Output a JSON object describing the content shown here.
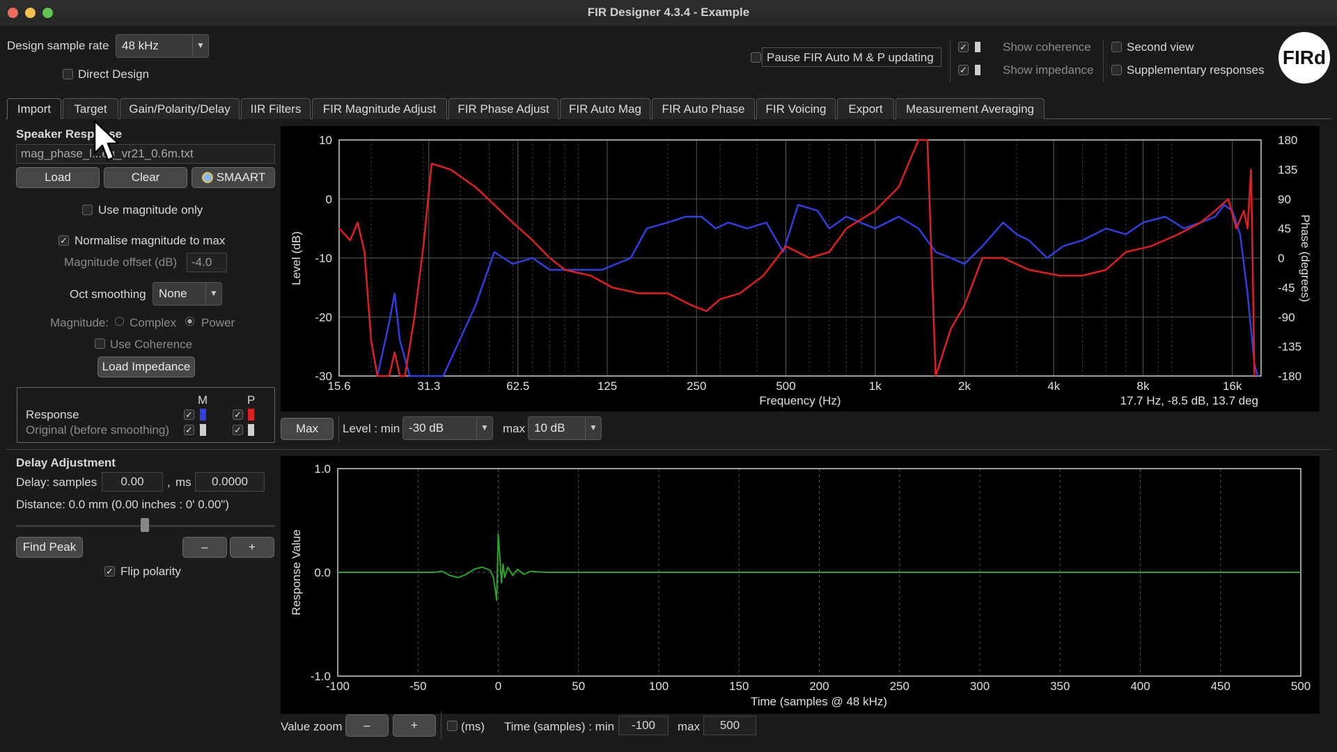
{
  "window": {
    "title": "FIR Designer 4.3.4 - Example"
  },
  "top": {
    "sample_rate_label": "Design sample rate",
    "sample_rate_value": "48 kHz",
    "direct_design": "Direct Design",
    "pause_fir": "Pause FIR Auto M & P updating",
    "show_coherence": "Show coherence",
    "show_impedance": "Show impedance",
    "second_view": "Second view",
    "supplementary": "Supplementary responses",
    "logo": "FIRd"
  },
  "tabs": [
    "Import",
    "Target",
    "Gain/Polarity/Delay",
    "IIR Filters",
    "FIR Magnitude Adjust",
    "FIR Phase Adjust",
    "FIR Auto Mag",
    "FIR Auto Phase",
    "FIR Voicing",
    "Export",
    "Measurement Averaging"
  ],
  "left": {
    "speaker_response": "Speaker Response",
    "filename": "mag_phase_l...eq_vr21_0.6m.txt",
    "load": "Load",
    "clear": "Clear",
    "smaart": "SMAART",
    "use_mag_only": "Use magnitude only",
    "normalise": "Normalise magnitude to max",
    "mag_offset_label": "Magnitude offset (dB)",
    "mag_offset_value": "-4.0",
    "oct_smoothing_label": "Oct smoothing",
    "oct_smoothing_value": "None",
    "magnitude_label": "Magnitude:",
    "complex": "Complex",
    "power": "Power",
    "use_coherence": "Use Coherence",
    "load_impedance": "Load Impedance",
    "legend_m": "M",
    "legend_p": "P",
    "response": "Response",
    "original": "Original (before smoothing)",
    "colors": {
      "magnitude": "#2f3fe0",
      "phase": "#e02020",
      "impulse": "#2aa52a"
    }
  },
  "delay": {
    "title": "Delay Adjustment",
    "samples_label": "Delay: samples",
    "samples_value": "0.00",
    "ms_label": "ms",
    "ms_value": "0.0000",
    "distance": "Distance: 0.0 mm (0.00 inches : 0'  0.00\")",
    "find_peak": "Find Peak",
    "minus": "–",
    "plus": "+",
    "flip_polarity": "Flip polarity"
  },
  "freq_controls": {
    "max_btn": "Max",
    "level_min_label": "Level : min",
    "level_min_value": "-30 dB",
    "max_label": "max",
    "max_value": "10 dB"
  },
  "time_controls": {
    "value_zoom": "Value zoom",
    "minus": "–",
    "plus": "+",
    "ms": "(ms)",
    "time_min_label": "Time (samples) : min",
    "time_min_value": "-100",
    "max_label": "max",
    "max_value": "500"
  },
  "chart_data": [
    {
      "type": "line",
      "xlabel": "Frequency (Hz)",
      "ylabel": "Level (dB)",
      "y2label": "Phase (degrees)",
      "xscale": "log",
      "xlim": [
        15.6,
        20000
      ],
      "xticks": [
        "15.6",
        "31.3",
        "62.5",
        "125",
        "250",
        "500",
        "1k",
        "2k",
        "4k",
        "8k",
        "16k"
      ],
      "ylim": [
        -30,
        10
      ],
      "yticks": [
        "10",
        "0",
        "-10",
        "-20",
        "-30"
      ],
      "y2lim": [
        -180,
        180
      ],
      "y2ticks": [
        "180",
        "135",
        "90",
        "45",
        "0",
        "-45",
        "-90",
        "-135",
        "-180"
      ],
      "readout": "17.7 Hz,  -8.5 dB,  13.7 deg",
      "series": [
        {
          "key": "magnitude",
          "color": "#2f3fe0",
          "points": [
            [
              21,
              -30
            ],
            [
              23,
              -21
            ],
            [
              24,
              -16
            ],
            [
              25,
              -24
            ],
            [
              27,
              -30
            ],
            [
              35,
              -30
            ],
            [
              45,
              -18
            ],
            [
              52,
              -9
            ],
            [
              60,
              -11
            ],
            [
              70,
              -10
            ],
            [
              80,
              -12
            ],
            [
              95,
              -12
            ],
            [
              120,
              -12
            ],
            [
              150,
              -10
            ],
            [
              170,
              -5
            ],
            [
              200,
              -4
            ],
            [
              230,
              -3
            ],
            [
              260,
              -3
            ],
            [
              290,
              -5
            ],
            [
              320,
              -4
            ],
            [
              370,
              -5
            ],
            [
              430,
              -4
            ],
            [
              490,
              -9
            ],
            [
              550,
              -1
            ],
            [
              640,
              -2
            ],
            [
              700,
              -5
            ],
            [
              800,
              -3
            ],
            [
              1000,
              -5
            ],
            [
              1200,
              -3
            ],
            [
              1400,
              -5
            ],
            [
              1600,
              -9
            ],
            [
              1800,
              -10
            ],
            [
              2000,
              -11
            ],
            [
              2300,
              -8
            ],
            [
              2700,
              -4
            ],
            [
              3000,
              -6
            ],
            [
              3300,
              -7
            ],
            [
              3800,
              -10
            ],
            [
              4300,
              -8
            ],
            [
              5000,
              -7
            ],
            [
              6000,
              -5
            ],
            [
              7000,
              -6
            ],
            [
              8000,
              -4
            ],
            [
              9500,
              -3
            ],
            [
              11000,
              -5
            ],
            [
              12500,
              -4
            ],
            [
              14000,
              -3
            ],
            [
              15000,
              -1
            ],
            [
              16000,
              -2
            ],
            [
              17000,
              -6
            ],
            [
              18000,
              -16
            ],
            [
              19000,
              -28
            ],
            [
              19500,
              -30
            ]
          ]
        },
        {
          "key": "phase",
          "color": "#e02020",
          "points": [
            [
              15.6,
              -5
            ],
            [
              17,
              -7
            ],
            [
              18,
              -4
            ],
            [
              19,
              -9
            ],
            [
              20,
              -24
            ],
            [
              21,
              -30
            ],
            [
              23,
              -30
            ],
            [
              24,
              -26
            ],
            [
              25,
              -30
            ],
            [
              26,
              -30
            ],
            [
              28,
              -20
            ],
            [
              30,
              -8
            ],
            [
              32,
              6
            ],
            [
              37,
              5
            ],
            [
              45,
              2
            ],
            [
              52,
              -1
            ],
            [
              60,
              -4
            ],
            [
              70,
              -7
            ],
            [
              80,
              -10
            ],
            [
              90,
              -12
            ],
            [
              110,
              -13
            ],
            [
              130,
              -15
            ],
            [
              160,
              -16
            ],
            [
              200,
              -16
            ],
            [
              240,
              -18
            ],
            [
              270,
              -19
            ],
            [
              300,
              -17
            ],
            [
              350,
              -16
            ],
            [
              420,
              -13
            ],
            [
              500,
              -8
            ],
            [
              600,
              -10
            ],
            [
              700,
              -9
            ],
            [
              800,
              -5
            ],
            [
              1000,
              -2
            ],
            [
              1200,
              2
            ],
            [
              1400,
              12
            ],
            [
              1500,
              14
            ],
            [
              1600,
              -30
            ],
            [
              1800,
              -22
            ],
            [
              2000,
              -18
            ],
            [
              2300,
              -10
            ],
            [
              2700,
              -10
            ],
            [
              3300,
              -12
            ],
            [
              4200,
              -13
            ],
            [
              5000,
              -13
            ],
            [
              6000,
              -12
            ],
            [
              7000,
              -9
            ],
            [
              8500,
              -8
            ],
            [
              10500,
              -6
            ],
            [
              12500,
              -4
            ],
            [
              14000,
              -2
            ],
            [
              15500,
              0
            ],
            [
              16500,
              -5
            ],
            [
              17500,
              -2
            ],
            [
              18000,
              -5
            ],
            [
              18500,
              5
            ],
            [
              19000,
              -30
            ]
          ]
        }
      ]
    },
    {
      "type": "line",
      "xlabel": "Time (samples @ 48 kHz)",
      "ylabel": "Response Value",
      "xlim": [
        -100,
        500
      ],
      "xticks": [
        "-100",
        "-50",
        "0",
        "50",
        "100",
        "150",
        "200",
        "250",
        "300",
        "350",
        "400",
        "450",
        "500"
      ],
      "ylim": [
        -1.0,
        1.0
      ],
      "yticks": [
        "1.0",
        "0.0",
        "-1.0"
      ],
      "series": [
        {
          "key": "impulse",
          "color": "#2aa52a",
          "points": [
            [
              -100,
              0
            ],
            [
              -40,
              0
            ],
            [
              -35,
              0.01
            ],
            [
              -30,
              -0.03
            ],
            [
              -25,
              -0.05
            ],
            [
              -20,
              -0.02
            ],
            [
              -15,
              0.03
            ],
            [
              -10,
              0.05
            ],
            [
              -5,
              0.02
            ],
            [
              -3,
              -0.05
            ],
            [
              -2,
              -0.15
            ],
            [
              -1,
              -0.27
            ],
            [
              0,
              0.37
            ],
            [
              1,
              0.15
            ],
            [
              2,
              -0.1
            ],
            [
              3,
              0.08
            ],
            [
              4,
              -0.05
            ],
            [
              6,
              0.05
            ],
            [
              9,
              -0.03
            ],
            [
              12,
              0.03
            ],
            [
              16,
              -0.02
            ],
            [
              20,
              0.01
            ],
            [
              30,
              0
            ],
            [
              500,
              0
            ]
          ]
        }
      ]
    }
  ]
}
